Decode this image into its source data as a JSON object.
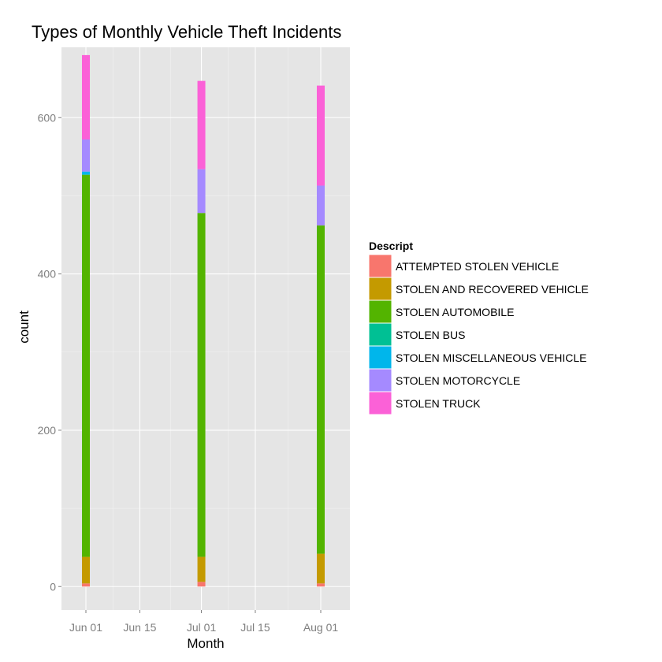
{
  "chart_data": {
    "type": "bar",
    "stacked": true,
    "title": "Types of Monthly Vehicle Theft Incidents",
    "xlabel": "Month",
    "ylabel": "count",
    "ylim": [
      -30,
      690
    ],
    "y_ticks": [
      0,
      200,
      400,
      600
    ],
    "y_tick_labels": [
      "0",
      "200",
      "400",
      "600"
    ],
    "x_tick_labels": [
      "Jun 01",
      "Jun 15",
      "Jul 01",
      "Jul 15",
      "Aug 01"
    ],
    "categories": [
      "Jun 01",
      "Jul 01",
      "Aug 01"
    ],
    "legend_title": "Descript",
    "legend_position": "right",
    "grid": true,
    "series": [
      {
        "name": "ATTEMPTED STOLEN VEHICLE",
        "color": "#F8766D",
        "values": [
          4,
          6,
          4
        ]
      },
      {
        "name": "STOLEN AND RECOVERED VEHICLE",
        "color": "#C49A00",
        "values": [
          34,
          32,
          38
        ]
      },
      {
        "name": "STOLEN AUTOMOBILE",
        "color": "#53B400",
        "values": [
          489,
          440,
          420
        ]
      },
      {
        "name": "STOLEN BUS",
        "color": "#00C094",
        "values": [
          0,
          0,
          0
        ]
      },
      {
        "name": "STOLEN MISCELLANEOUS VEHICLE",
        "color": "#00B6EB",
        "values": [
          4,
          0,
          0
        ]
      },
      {
        "name": "STOLEN MOTORCYCLE",
        "color": "#A58AFF",
        "values": [
          41,
          56,
          51
        ]
      },
      {
        "name": "STOLEN TRUCK",
        "color": "#FB61D7",
        "values": [
          108,
          113,
          128
        ]
      }
    ]
  }
}
